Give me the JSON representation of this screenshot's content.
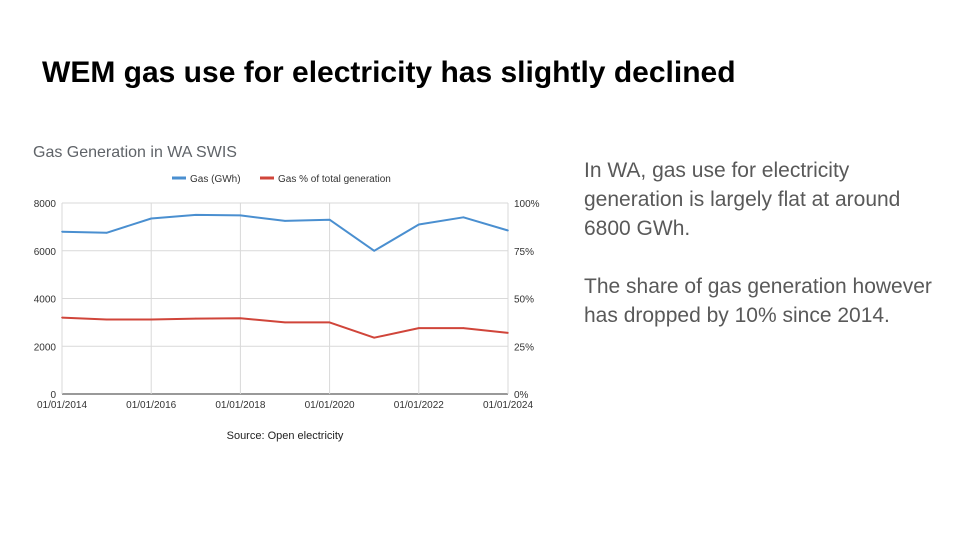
{
  "slide": {
    "title": "WEM gas use for electricity has slightly declined",
    "paragraphs": [
      "In WA, gas use for electricity generation is largely flat at around 6800 GWh.",
      "The share of gas generation however has dropped by 10% since 2014."
    ]
  },
  "chart_data": {
    "type": "line",
    "title": "Gas Generation in WA SWIS",
    "source": "Source: Open electricity",
    "x": [
      "01/01/2014",
      "2015",
      "01/01/2016",
      "2017",
      "01/01/2018",
      "2019",
      "01/01/2020",
      "2021",
      "01/01/2022",
      "2023",
      "01/01/2024"
    ],
    "x_tick_labels": [
      "01/01/2014",
      "01/01/2016",
      "01/01/2018",
      "01/01/2020",
      "01/01/2022",
      "01/01/2024"
    ],
    "y_left": {
      "ylim": [
        0,
        8000
      ],
      "ticks": [
        "0",
        "2000",
        "4000",
        "6000",
        "8000"
      ]
    },
    "y_right": {
      "ylim": [
        0,
        100
      ],
      "ticks": [
        "0%",
        "25%",
        "50%",
        "75%",
        "100%"
      ]
    },
    "series": [
      {
        "name": "Gas (GWh)",
        "axis": "left",
        "color": "#4a8fd0",
        "values": [
          6800,
          6750,
          7350,
          7500,
          7480,
          7250,
          7300,
          6000,
          7100,
          7400,
          6850
        ]
      },
      {
        "name": "Gas % of total generation",
        "axis": "right",
        "color": "#d0453a",
        "values": [
          40,
          39,
          39,
          39.5,
          39.7,
          37.5,
          37.5,
          29.5,
          34.5,
          34.5,
          32
        ]
      }
    ],
    "grid": true,
    "legend": "top-center"
  }
}
